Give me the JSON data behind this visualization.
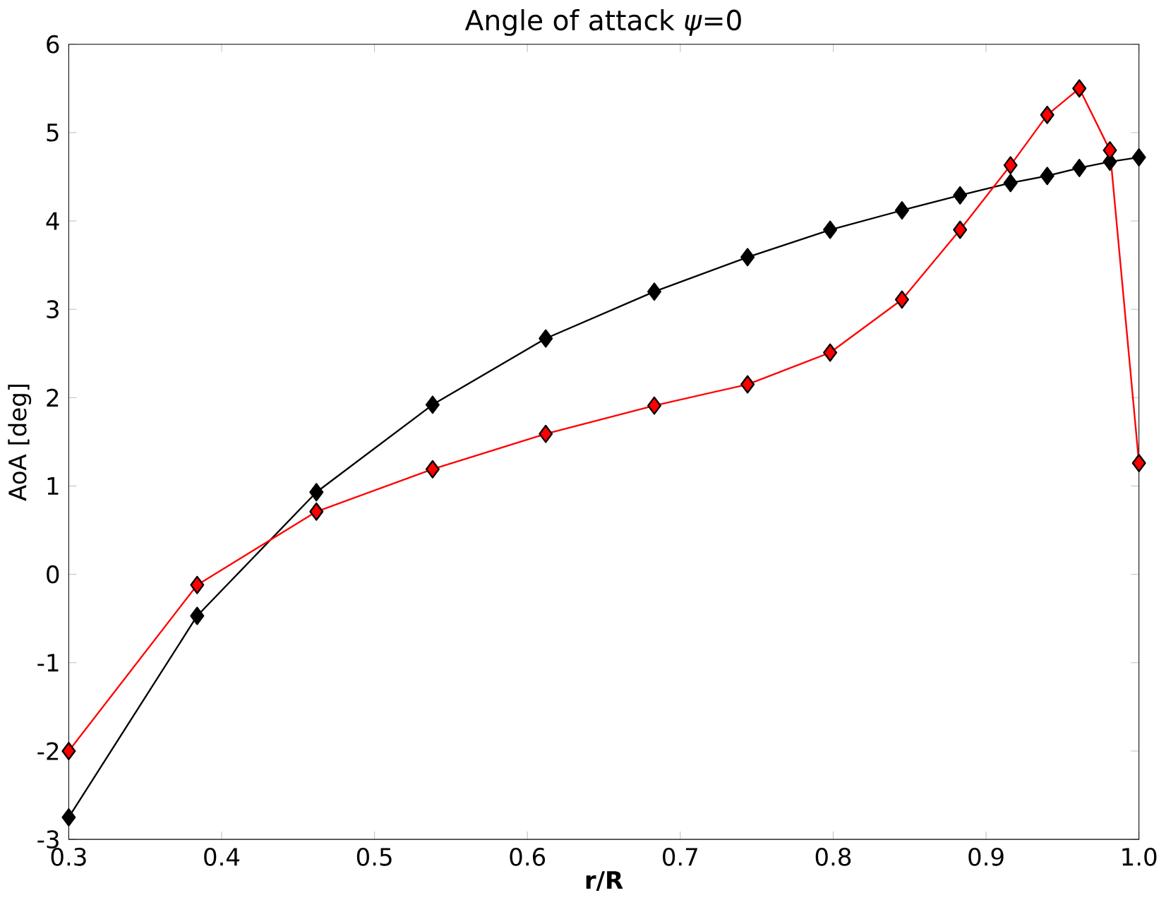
{
  "chart_data": {
    "type": "line",
    "title": "Angle of attack *ψ*=0",
    "xlabel": "r/R",
    "ylabel": "AoA [deg]",
    "x": [
      0.3,
      0.384,
      0.462,
      0.538,
      0.612,
      0.683,
      0.744,
      0.798,
      0.845,
      0.883,
      0.916,
      0.94,
      0.961,
      0.981,
      1.0
    ],
    "series": [
      {
        "color": "#000000",
        "values": [
          -2.75,
          -0.47,
          0.93,
          1.92,
          2.67,
          3.2,
          3.59,
          3.9,
          4.12,
          4.29,
          4.43,
          4.51,
          4.6,
          4.67,
          4.72
        ]
      },
      {
        "color": "#ff0000",
        "values": [
          -2.0,
          -0.12,
          0.71,
          1.19,
          1.59,
          1.91,
          2.15,
          2.51,
          3.11,
          3.9,
          4.63,
          5.2,
          5.5,
          4.8,
          1.26
        ]
      }
    ],
    "xlim": [
      0.3,
      1.0
    ],
    "ylim": [
      -3,
      6
    ],
    "xticks": [
      0.3,
      0.4,
      0.5,
      0.6,
      0.7,
      0.8,
      0.9,
      {
        "value": 1.0,
        "label": "1.0"
      }
    ],
    "yticks": [
      -3,
      -2,
      -1,
      0,
      1,
      2,
      3,
      4,
      5,
      6
    ],
    "grid": false,
    "marker": "diamond",
    "line_style": "solid"
  }
}
